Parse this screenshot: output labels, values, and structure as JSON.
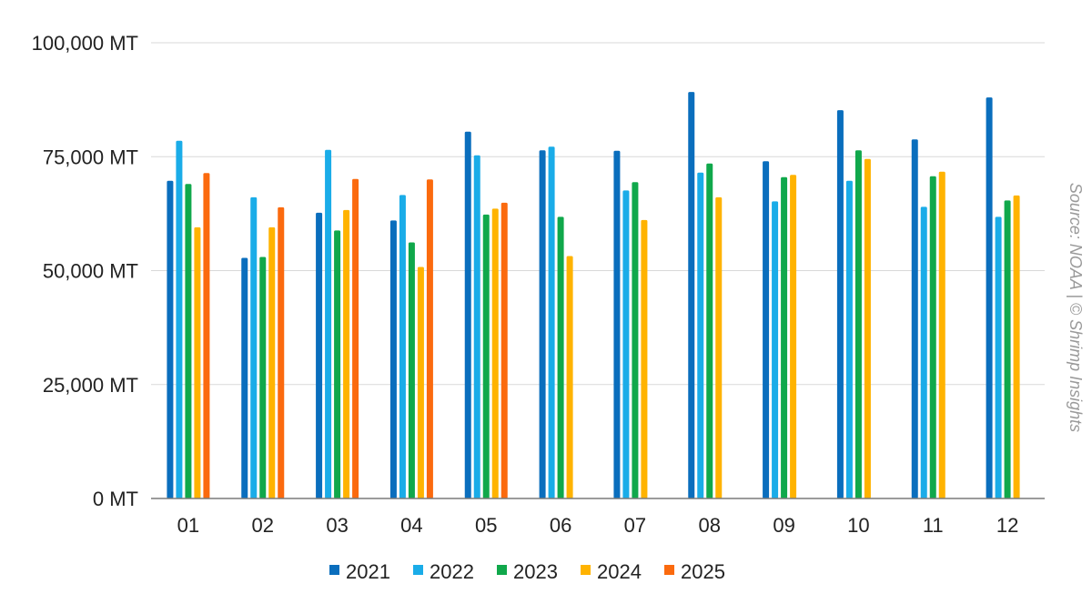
{
  "chart_data": {
    "type": "bar",
    "title": "",
    "xlabel": "",
    "ylabel": "",
    "categories": [
      "01",
      "02",
      "03",
      "04",
      "05",
      "06",
      "07",
      "08",
      "09",
      "10",
      "11",
      "12"
    ],
    "ylim": [
      0,
      100000
    ],
    "y_ticks": [
      {
        "value": 0,
        "label": "0 MT"
      },
      {
        "value": 25000,
        "label": "25,000 MT"
      },
      {
        "value": 50000,
        "label": "50,000 MT"
      },
      {
        "value": 75000,
        "label": "75,000 MT"
      },
      {
        "value": 100000,
        "label": "100,000 MT"
      }
    ],
    "grid": true,
    "legend_position": "bottom",
    "series": [
      {
        "name": "2021",
        "color": "#0a6ebd",
        "values": [
          69700,
          52800,
          62700,
          61000,
          80500,
          76400,
          76300,
          89200,
          74000,
          85200,
          78800,
          88000
        ]
      },
      {
        "name": "2022",
        "color": "#1aace8",
        "values": [
          78500,
          66100,
          76500,
          66600,
          75300,
          77200,
          67600,
          71500,
          65200,
          69700,
          64000,
          61800
        ]
      },
      {
        "name": "2023",
        "color": "#10a84b",
        "values": [
          69000,
          53000,
          58800,
          56200,
          62300,
          61800,
          69400,
          73500,
          70500,
          76400,
          70700,
          65400
        ]
      },
      {
        "name": "2024",
        "color": "#ffb300",
        "values": [
          59500,
          59500,
          63300,
          50800,
          63600,
          53200,
          61100,
          66100,
          71000,
          74500,
          71700,
          66500
        ]
      },
      {
        "name": "2025",
        "color": "#fb6a0e",
        "values": [
          71400,
          63900,
          70100,
          70000,
          64900,
          null,
          null,
          null,
          null,
          null,
          null,
          null
        ]
      }
    ],
    "annotations": [
      "Source: NOAA | © Shrimp Insights"
    ]
  }
}
